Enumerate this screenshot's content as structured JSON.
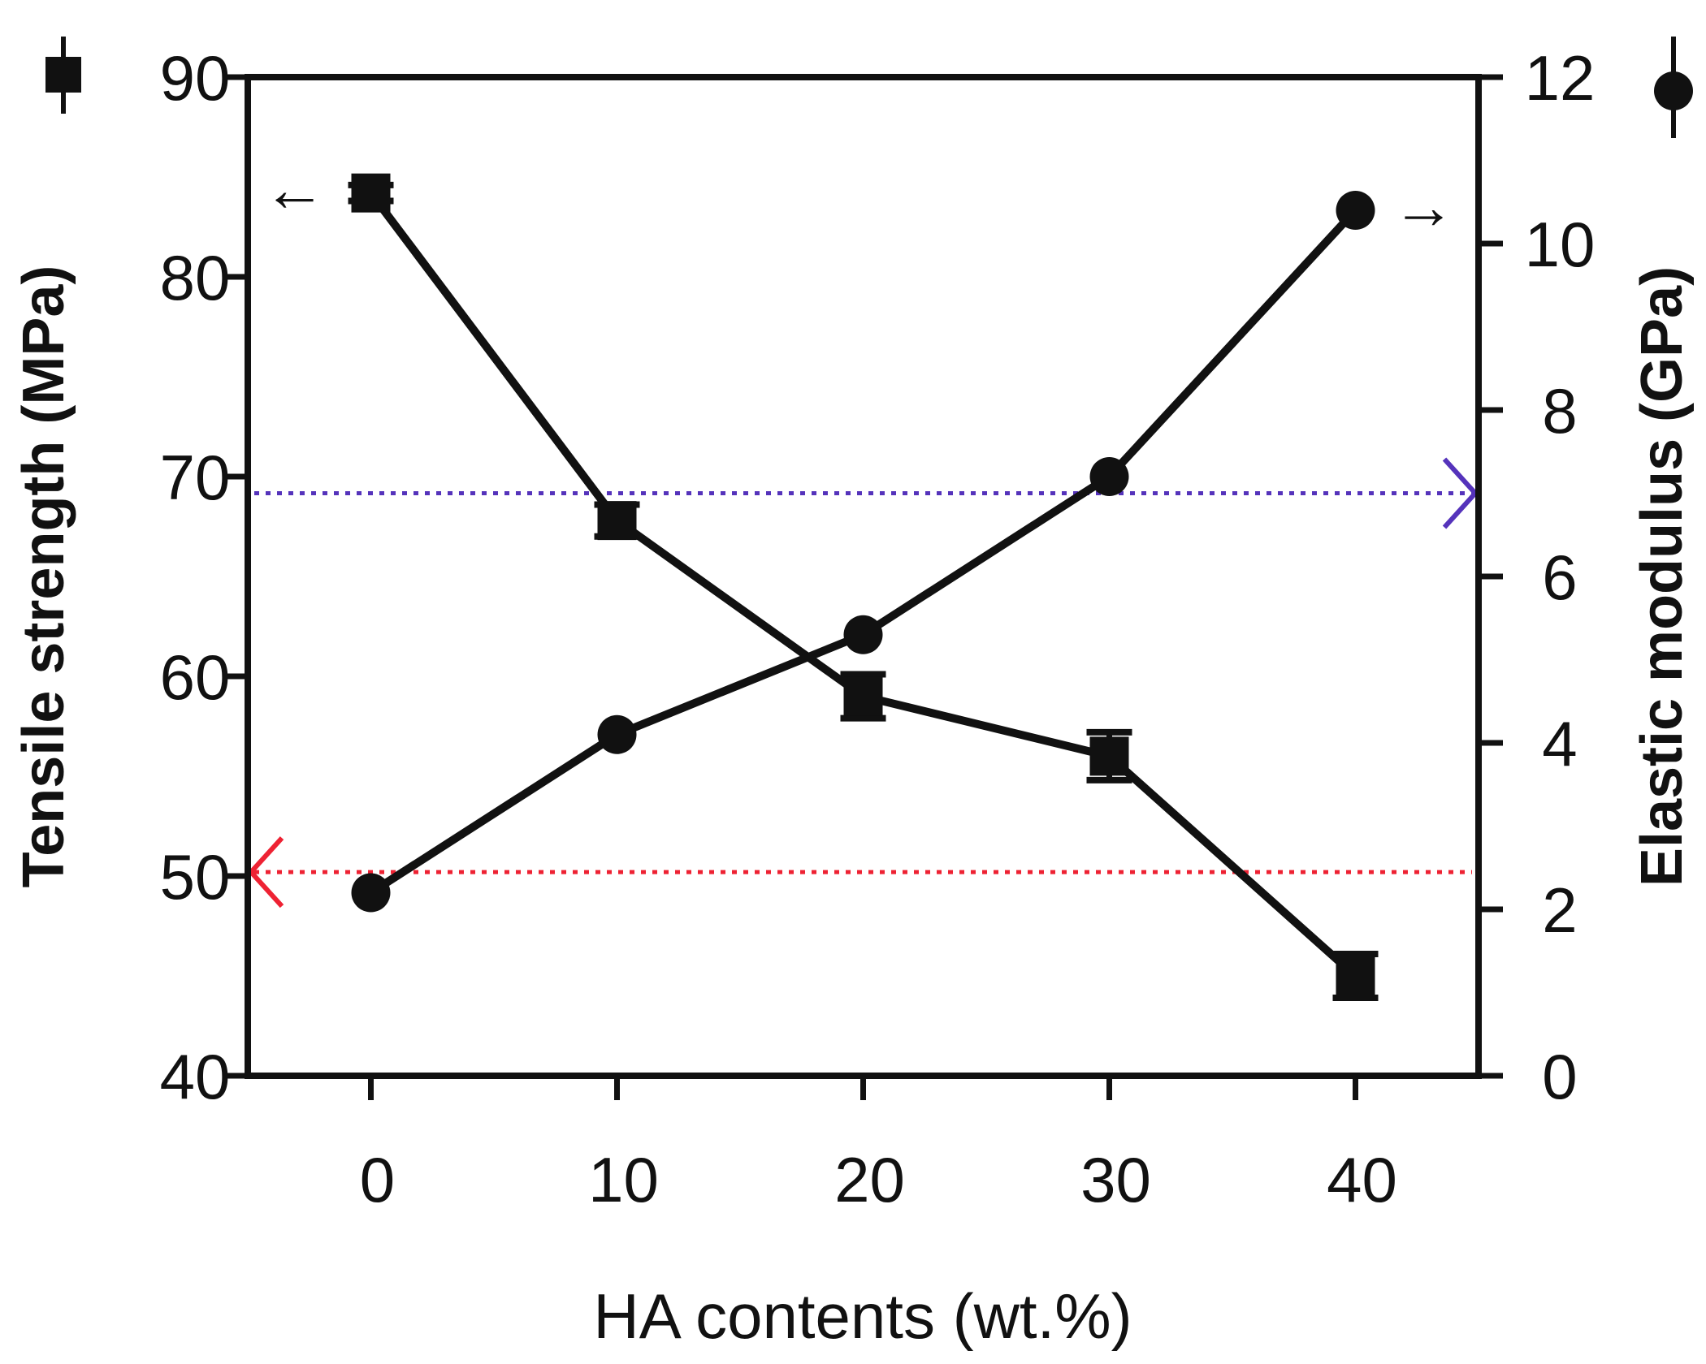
{
  "chart_data": {
    "type": "line",
    "x": [
      0,
      10,
      20,
      30,
      40
    ],
    "xticks": [
      "0",
      "10",
      "20",
      "30",
      "40"
    ],
    "xlabel": "HA contents (wt.%)",
    "xlim": [
      -5,
      45
    ],
    "left_axis": {
      "label": "Tensile strength (MPa)",
      "ylim": [
        40,
        90
      ],
      "ticks": [
        "40",
        "50",
        "60",
        "70",
        "80",
        "90"
      ]
    },
    "right_axis": {
      "label": "Elastic modulus (GPa)",
      "ylim": [
        0,
        12
      ],
      "ticks": [
        "0",
        "2",
        "4",
        "6",
        "8",
        "10",
        "12"
      ]
    },
    "series": [
      {
        "name": "Tensile strength",
        "axis": "left",
        "marker": "square",
        "values": [
          84.2,
          67.8,
          59.0,
          56.0,
          45.0
        ],
        "errors": [
          0.4,
          0.8,
          1.1,
          1.2,
          1.1
        ]
      },
      {
        "name": "Elastic modulus",
        "axis": "right",
        "marker": "circle",
        "values": [
          2.2,
          4.1,
          5.3,
          7.2,
          10.4
        ],
        "errors": [
          0,
          0,
          0,
          0,
          0
        ]
      }
    ],
    "reference_lines": [
      {
        "axis": "right",
        "value": 7.0,
        "color": "#5533bb",
        "style": "dotted",
        "arrow": "right"
      },
      {
        "axis": "left",
        "value": 50.2,
        "color": "#ee2233",
        "style": "dotted",
        "arrow": "left"
      }
    ],
    "annotations": [
      {
        "series": "Tensile strength",
        "text": "←",
        "direction": "left"
      },
      {
        "series": "Elastic modulus",
        "text": "→",
        "direction": "right"
      }
    ],
    "colors": {
      "line": "#111111",
      "ref_blue": "#5533bb",
      "ref_red": "#ee2233"
    }
  }
}
